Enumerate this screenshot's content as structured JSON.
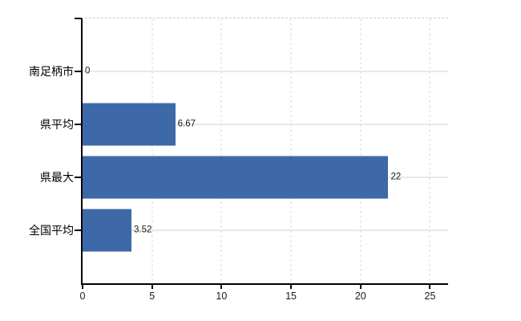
{
  "chart_data": {
    "type": "bar",
    "orientation": "horizontal",
    "title": "",
    "xlabel": "",
    "ylabel": "",
    "categories": [
      "南足柄市",
      "県平均",
      "県最大",
      "全国平均"
    ],
    "values": [
      0,
      6.67,
      22,
      3.52
    ],
    "value_labels": [
      "0",
      "6.67",
      "22",
      "3.52"
    ],
    "x_ticks": [
      0,
      5,
      10,
      15,
      20,
      25
    ],
    "x_tick_labels": [
      "0",
      "5",
      "10",
      "15",
      "20",
      "25"
    ],
    "xlim": [
      0,
      26.3
    ],
    "grid": {
      "vertical": "dashed",
      "horizontal": "solid"
    },
    "legend_position": "none"
  },
  "colors": {
    "bar": "#3E69A8",
    "h_gridline": "#CDD6CD",
    "v_gridline": "#D9D9D9",
    "plot_top_border": "#CCCCCC",
    "axis": "#000000",
    "text": "#1A1A1A",
    "background": "#FFFFFF"
  }
}
